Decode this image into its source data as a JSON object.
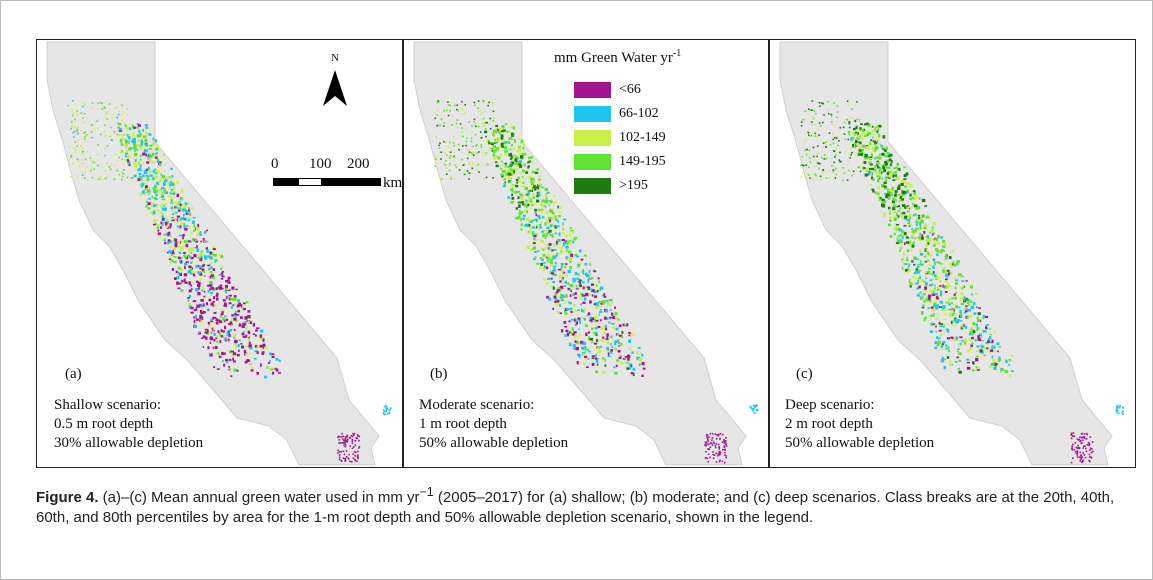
{
  "compass": {
    "label": "N",
    "icon": "north-arrow-icon"
  },
  "scale_bar": {
    "ticks": [
      "0",
      "100",
      "200"
    ],
    "unit": "km"
  },
  "legend": {
    "title": "mm Green Water yr",
    "title_sup": "-1",
    "classes": [
      {
        "label": "<66",
        "color": "#a3148f"
      },
      {
        "label": "66-102",
        "color": "#1ec5f0"
      },
      {
        "label": "102-149",
        "color": "#c9f04a"
      },
      {
        "label": "149-195",
        "color": "#5ee233"
      },
      {
        "label": ">195",
        "color": "#1f7a12"
      }
    ]
  },
  "panels": [
    {
      "id": "a",
      "label": "(a)",
      "scenario": "Shallow scenario:",
      "root_depth": "0.5 m root depth",
      "depletion": "30% allowable depletion"
    },
    {
      "id": "b",
      "label": "(b)",
      "scenario": "Moderate scenario:",
      "root_depth": "1 m root depth",
      "depletion": "50% allowable depletion"
    },
    {
      "id": "c",
      "label": "(c)",
      "scenario": "Deep scenario:",
      "root_depth": "2 m root depth",
      "depletion": "50% allowable depletion"
    }
  ],
  "caption": {
    "figure_label": "Figure 4.",
    "text_1": " (a)–(c) Mean annual green water used in mm yr",
    "text_sup": "−1",
    "text_2": " (2005–2017) for (a) shallow; (b) moderate; and (c) deep scenarios. Class breaks are at the 20th, 40th, 60th, and 80th percentiles by area for the 1-m root depth and 50% allowable depletion scenario, shown in the legend."
  },
  "colors": {
    "land": "#e6e6e6",
    "land_edge": "#cfcfcf",
    "frame": "#222222"
  }
}
